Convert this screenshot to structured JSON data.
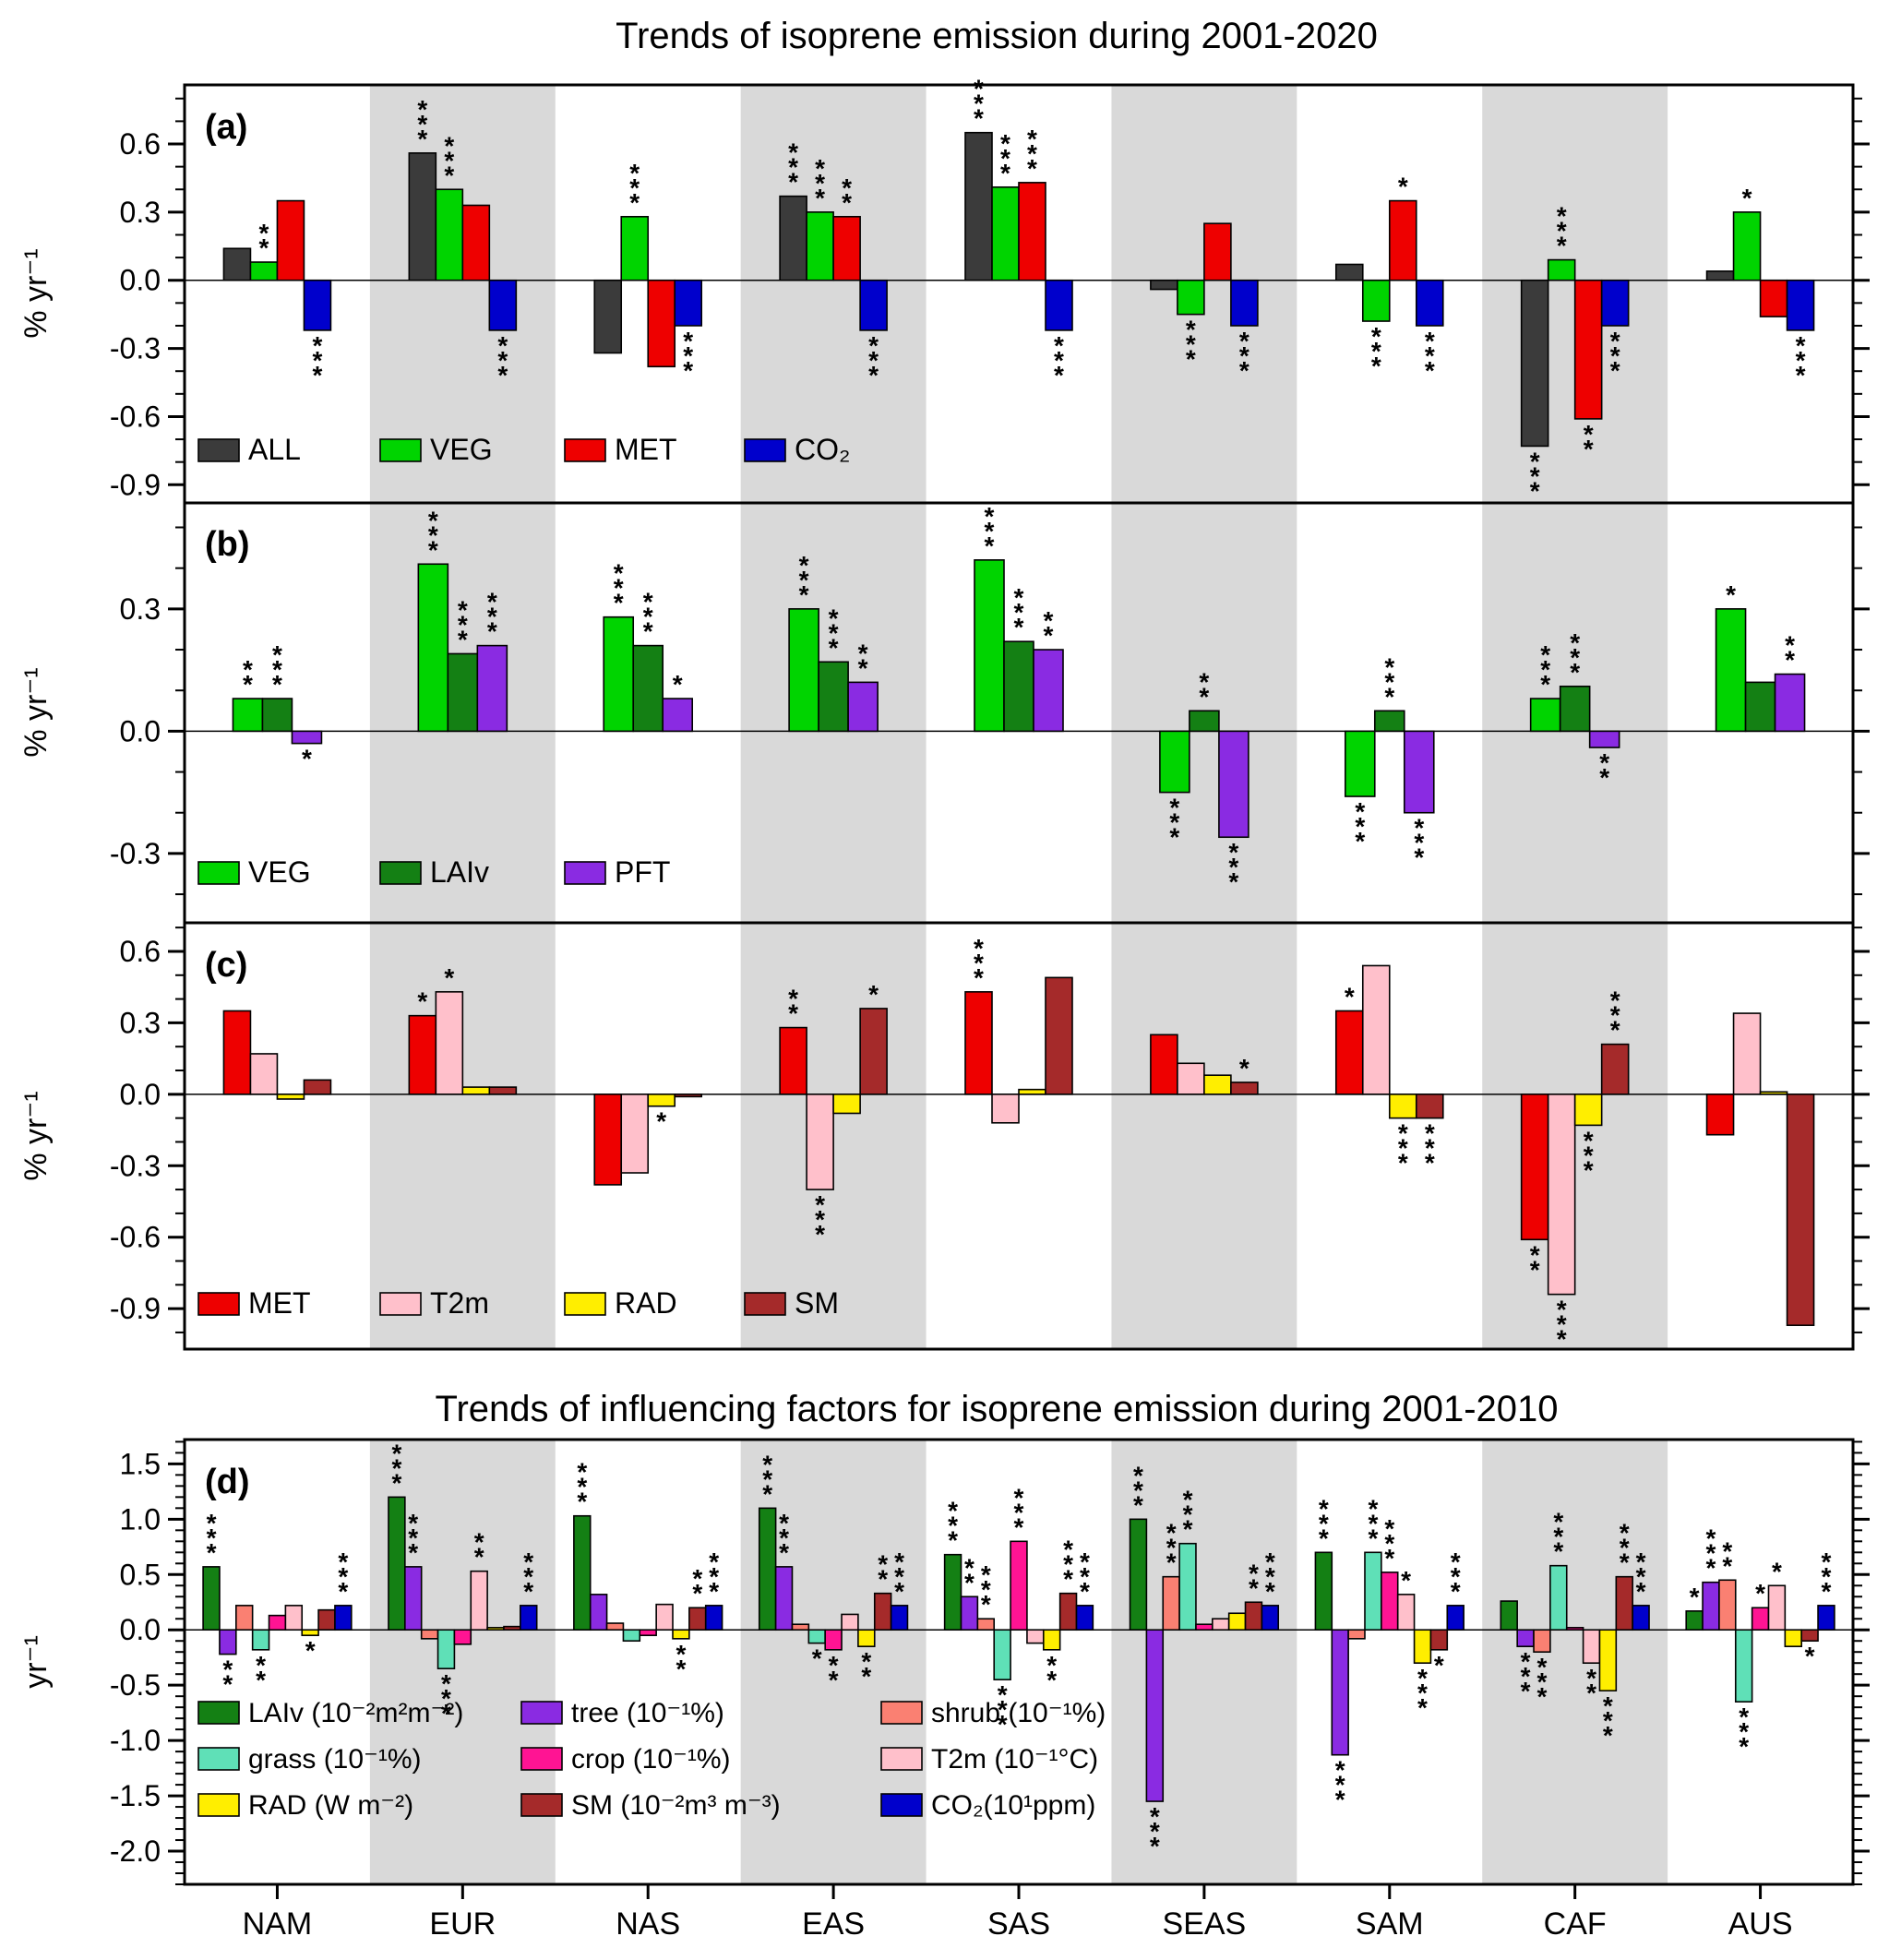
{
  "figure": {
    "title_top": "Trends of isoprene emission during 2001-2020",
    "title_bottom": "Trends of influencing factors for isoprene emission during 2001-2010"
  },
  "categories": [
    "NAM",
    "EUR",
    "NAS",
    "EAS",
    "SAS",
    "SEAS",
    "SAM",
    "CAF",
    "AUS"
  ],
  "colors": {
    "ALL": "#3b3b3b",
    "VEG": "#00d400",
    "MET": "#ee0000",
    "CO2": "#0000cc",
    "LAIv": "#148014",
    "PFT": "#8a2be2",
    "T2m": "#ffc0cb",
    "RAD": "#ffee00",
    "SM": "#a52a2a",
    "tree": "#8a2be2",
    "grass": "#5fe0b7",
    "crop": "#ff1493",
    "shrub": "#fa8072",
    "band": "#d9d9d9"
  },
  "chart_data": [
    {
      "id": "a",
      "type": "bar",
      "panel_label": "(a)",
      "ylabel": "% yr⁻¹",
      "ylim": [
        -0.98,
        0.86
      ],
      "yticks": [
        -0.9,
        -0.6,
        -0.3,
        0.0,
        0.3,
        0.6
      ],
      "minor_step": 0.1,
      "series": [
        {
          "name": "ALL",
          "color": "#3b3b3b",
          "values": [
            0.14,
            0.56,
            -0.32,
            0.37,
            0.65,
            -0.04,
            0.07,
            -0.73,
            0.04
          ],
          "sig": [
            "",
            "***",
            "",
            "***",
            "***",
            "",
            "",
            "***",
            ""
          ]
        },
        {
          "name": "VEG",
          "color": "#00d400",
          "values": [
            0.08,
            0.4,
            0.28,
            0.3,
            0.41,
            -0.15,
            -0.18,
            0.09,
            0.3
          ],
          "sig": [
            "**",
            "***",
            "***",
            "***",
            "***",
            "***",
            "***",
            "***",
            "*"
          ]
        },
        {
          "name": "MET",
          "color": "#ee0000",
          "values": [
            0.35,
            0.33,
            -0.38,
            0.28,
            0.43,
            0.25,
            0.35,
            -0.61,
            -0.16
          ],
          "sig": [
            "",
            "",
            "",
            "**",
            "***",
            "",
            "*",
            "**",
            ""
          ]
        },
        {
          "name": "CO2",
          "color": "#0000cc",
          "values": [
            -0.22,
            -0.22,
            -0.2,
            -0.22,
            -0.22,
            -0.2,
            -0.2,
            -0.2,
            -0.22
          ],
          "sig": [
            "***",
            "***",
            "***",
            "***",
            "***",
            "***",
            "***",
            "***",
            "***"
          ]
        }
      ],
      "legend": [
        {
          "label": "ALL",
          "color": "#3b3b3b"
        },
        {
          "label": "VEG",
          "color": "#00d400"
        },
        {
          "label": "MET",
          "color": "#ee0000"
        },
        {
          "label": "CO₂",
          "color": "#0000cc"
        }
      ]
    },
    {
      "id": "b",
      "type": "bar",
      "panel_label": "(b)",
      "ylabel": "% yr⁻¹",
      "ylim": [
        -0.47,
        0.56
      ],
      "yticks": [
        -0.3,
        0.0,
        0.3
      ],
      "minor_step": 0.1,
      "series": [
        {
          "name": "VEG",
          "color": "#00d400",
          "values": [
            0.08,
            0.41,
            0.28,
            0.3,
            0.42,
            -0.15,
            -0.16,
            0.08,
            0.3
          ],
          "sig": [
            "**",
            "***",
            "***",
            "***",
            "***",
            "***",
            "***",
            "***",
            "*"
          ]
        },
        {
          "name": "LAIv",
          "color": "#148014",
          "values": [
            0.08,
            0.19,
            0.21,
            0.17,
            0.22,
            0.05,
            0.05,
            0.11,
            0.12
          ],
          "sig": [
            "***",
            "***",
            "***",
            "***",
            "***",
            "**",
            "***",
            "***",
            ""
          ]
        },
        {
          "name": "PFT",
          "color": "#8a2be2",
          "values": [
            -0.03,
            0.21,
            0.08,
            0.12,
            0.2,
            -0.26,
            -0.2,
            -0.04,
            0.14
          ],
          "sig": [
            "*",
            "***",
            "*",
            "**",
            "**",
            "***",
            "***",
            "**",
            "**"
          ]
        }
      ],
      "legend": [
        {
          "label": "VEG",
          "color": "#00d400"
        },
        {
          "label": "LAIv",
          "color": "#148014"
        },
        {
          "label": "PFT",
          "color": "#8a2be2"
        }
      ]
    },
    {
      "id": "c",
      "type": "bar",
      "panel_label": "(c)",
      "ylabel": "% yr⁻¹",
      "ylim": [
        -1.07,
        0.72
      ],
      "yticks": [
        -0.9,
        -0.6,
        -0.3,
        0.0,
        0.3,
        0.6
      ],
      "minor_step": 0.1,
      "series": [
        {
          "name": "MET",
          "color": "#ee0000",
          "values": [
            0.35,
            0.33,
            -0.38,
            0.28,
            0.43,
            0.25,
            0.35,
            -0.61,
            -0.17
          ],
          "sig": [
            "",
            "*",
            "",
            "**",
            "***",
            "",
            "*",
            "**",
            ""
          ]
        },
        {
          "name": "T2m",
          "color": "#ffc0cb",
          "values": [
            0.17,
            0.43,
            -0.33,
            -0.4,
            -0.12,
            0.13,
            0.54,
            -0.84,
            0.34
          ],
          "sig": [
            "",
            "*",
            "",
            "***",
            "",
            "",
            "",
            "***",
            ""
          ]
        },
        {
          "name": "RAD",
          "color": "#ffee00",
          "values": [
            -0.02,
            0.03,
            -0.05,
            -0.08,
            0.02,
            0.08,
            -0.1,
            -0.13,
            0.01
          ],
          "sig": [
            "",
            "",
            "*",
            "",
            "",
            "",
            "***",
            "***",
            ""
          ]
        },
        {
          "name": "SM",
          "color": "#a52a2a",
          "values": [
            0.06,
            0.03,
            -0.01,
            0.36,
            0.49,
            0.05,
            -0.1,
            0.21,
            -0.97
          ],
          "sig": [
            "",
            "",
            "",
            "*",
            "",
            "*",
            "***",
            "***",
            ""
          ]
        }
      ],
      "legend": [
        {
          "label": "MET",
          "color": "#ee0000"
        },
        {
          "label": "T2m",
          "color": "#ffc0cb"
        },
        {
          "label": "RAD",
          "color": "#ffee00"
        },
        {
          "label": "SM",
          "color": "#a52a2a"
        }
      ]
    },
    {
      "id": "d",
      "type": "bar",
      "panel_label": "(d)",
      "ylabel": "yr⁻¹",
      "ylim": [
        -2.3,
        1.72
      ],
      "yticks": [
        -2.0,
        -1.5,
        -1.0,
        -0.5,
        0.0,
        0.5,
        1.0,
        1.5
      ],
      "minor_step": 0.1,
      "series": [
        {
          "name": "LAIv",
          "color": "#148014",
          "values": [
            0.57,
            1.2,
            1.03,
            1.1,
            0.68,
            1.0,
            0.7,
            0.26,
            0.17
          ],
          "sig": [
            "***",
            "***",
            "***",
            "***",
            "***",
            "***",
            "***",
            "",
            "*"
          ]
        },
        {
          "name": "tree",
          "color": "#8a2be2",
          "values": [
            -0.22,
            0.57,
            0.32,
            0.57,
            0.3,
            -1.55,
            -1.13,
            -0.15,
            0.43
          ],
          "sig": [
            "**",
            "***",
            "",
            "***",
            "**",
            "***",
            "***",
            "***",
            "***"
          ]
        },
        {
          "name": "shrub",
          "color": "#fa8072",
          "values": [
            0.22,
            -0.08,
            0.06,
            0.05,
            0.1,
            0.48,
            -0.08,
            -0.2,
            0.45
          ],
          "sig": [
            "",
            "",
            "",
            "",
            "***",
            "***",
            "",
            "***",
            "**"
          ]
        },
        {
          "name": "grass",
          "color": "#5fe0b7",
          "values": [
            -0.18,
            -0.35,
            -0.1,
            -0.12,
            -0.45,
            0.78,
            0.7,
            0.58,
            -0.65
          ],
          "sig": [
            "**",
            "***",
            "",
            "*",
            "***",
            "***",
            "***",
            "***",
            "***"
          ]
        },
        {
          "name": "crop",
          "color": "#ff1493",
          "values": [
            0.13,
            -0.13,
            -0.05,
            -0.18,
            0.8,
            0.05,
            0.52,
            0.02,
            0.2
          ],
          "sig": [
            "",
            "",
            "",
            "**",
            "***",
            "",
            "***",
            "",
            "*"
          ]
        },
        {
          "name": "T2m",
          "color": "#ffc0cb",
          "values": [
            0.22,
            0.53,
            0.23,
            0.14,
            -0.12,
            0.1,
            0.32,
            -0.3,
            0.4
          ],
          "sig": [
            "",
            "**",
            "",
            "",
            "",
            "",
            "*",
            "**",
            "*"
          ]
        },
        {
          "name": "RAD",
          "color": "#ffee00",
          "values": [
            -0.05,
            0.02,
            -0.08,
            -0.15,
            -0.18,
            0.15,
            -0.3,
            -0.55,
            -0.15
          ],
          "sig": [
            "*",
            "",
            "**",
            "**",
            "**",
            "",
            "***",
            "***",
            ""
          ]
        },
        {
          "name": "SM",
          "color": "#a52a2a",
          "values": [
            0.18,
            0.03,
            0.2,
            0.33,
            0.33,
            0.25,
            -0.18,
            0.48,
            -0.1
          ],
          "sig": [
            "",
            "",
            "**",
            "**",
            "***",
            "**",
            "*",
            "***",
            "*"
          ]
        },
        {
          "name": "CO2",
          "color": "#0000cc",
          "values": [
            0.22,
            0.22,
            0.22,
            0.22,
            0.22,
            0.22,
            0.22,
            0.22,
            0.22
          ],
          "sig": [
            "***",
            "***",
            "***",
            "***",
            "***",
            "***",
            "***",
            "***",
            "***"
          ]
        }
      ],
      "legend": [
        {
          "label": "LAIv (10⁻²m²m⁻²)",
          "color": "#148014"
        },
        {
          "label": "grass (10⁻¹%)",
          "color": "#5fe0b7"
        },
        {
          "label": "RAD (W m⁻²)",
          "color": "#ffee00"
        },
        {
          "label": "tree (10⁻¹%)",
          "color": "#8a2be2"
        },
        {
          "label": "crop (10⁻¹%)",
          "color": "#ff1493"
        },
        {
          "label": "SM (10⁻²m³ m⁻³)",
          "color": "#a52a2a"
        },
        {
          "label": "shrub (10⁻¹%)",
          "color": "#fa8072"
        },
        {
          "label": "T2m (10⁻¹°C)",
          "color": "#ffc0cb"
        },
        {
          "label": "CO₂(10¹ppm)",
          "color": "#0000cc"
        }
      ]
    }
  ]
}
